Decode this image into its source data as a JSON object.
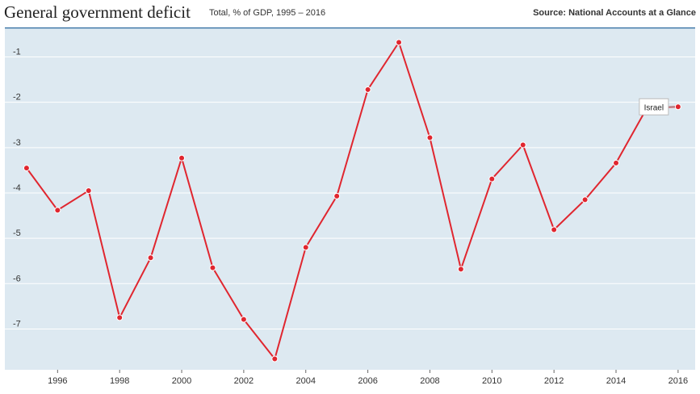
{
  "header": {
    "title": "General government deficit",
    "subtitle": "Total, % of GDP, 1995 – 2016",
    "source": "Source: National Accounts at a Glance"
  },
  "colors": {
    "plot_background": "#dde9f1",
    "series_line": "#e0262f",
    "top_rule": "#2c6aa0",
    "gridline": "#ffffff"
  },
  "chart_data": {
    "type": "line",
    "title": "General government deficit",
    "subtitle": "Total, % of GDP, 1995 – 2016",
    "xlabel": "",
    "ylabel": "",
    "x": [
      1995,
      1996,
      1997,
      1998,
      1999,
      2000,
      2001,
      2002,
      2003,
      2004,
      2005,
      2006,
      2007,
      2008,
      2009,
      2010,
      2011,
      2012,
      2013,
      2014,
      2015,
      2016
    ],
    "series": [
      {
        "name": "Israel",
        "values": [
          -3.45,
          -4.38,
          -3.95,
          -6.75,
          -5.43,
          -3.23,
          -5.65,
          -6.79,
          -7.66,
          -5.2,
          -4.07,
          -1.72,
          -0.68,
          -2.78,
          -5.68,
          -3.69,
          -2.94,
          -4.81,
          -4.15,
          -3.34,
          -2.12,
          -2.1
        ]
      }
    ],
    "xlim": [
      1994.3,
      2016.55
    ],
    "ylim": [
      -7.9,
      -0.35
    ],
    "x_ticks": [
      1996,
      1998,
      2000,
      2002,
      2004,
      2006,
      2008,
      2010,
      2012,
      2014,
      2016
    ],
    "y_ticks": [
      -1,
      -2,
      -3,
      -4,
      -5,
      -6,
      -7
    ],
    "grid": true,
    "legend": "label at end of line"
  }
}
